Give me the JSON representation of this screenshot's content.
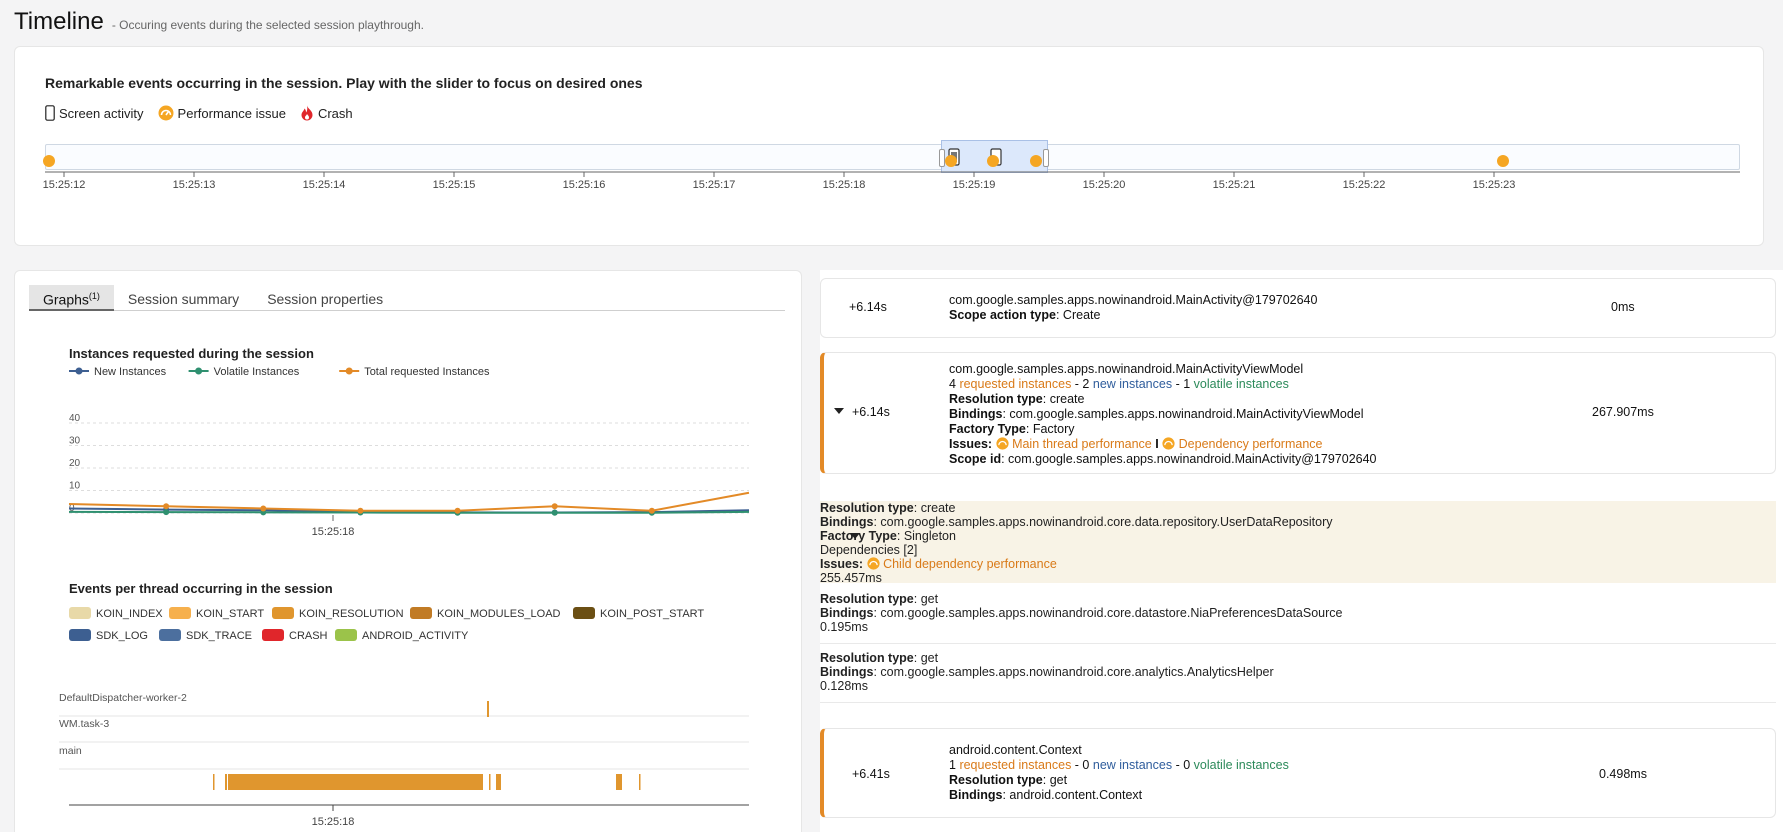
{
  "header": {
    "title": "Timeline",
    "subtitle": "- Occuring events during the selected session playthrough."
  },
  "timeline": {
    "headline": "Remarkable events occurring in the session. Play with the slider to focus on desired ones",
    "legend": [
      {
        "label": "Screen activity",
        "icon": "phone-icon"
      },
      {
        "label": "Performance issue",
        "icon": "gauge-icon"
      },
      {
        "label": "Crash",
        "icon": "flame-icon"
      }
    ],
    "ticks": [
      "15:25:12",
      "15:25:13",
      "15:25:14",
      "15:25:15",
      "15:25:16",
      "15:25:17",
      "15:25:18",
      "15:25:19",
      "15:25:20",
      "15:25:21",
      "15:25:22",
      "15:25:23"
    ],
    "colors": {
      "accent": "#f5a623",
      "selection": "#dce8fb"
    }
  },
  "tabs": {
    "graphs": "Graphs",
    "graphs_badge": "(1)",
    "summary": "Session summary",
    "properties": "Session properties"
  },
  "chart_data": [
    {
      "type": "line",
      "title": "Instances requested during the session",
      "x_tick": "15:25:18",
      "yticks": [
        "40",
        "30",
        "20",
        "10",
        "0"
      ],
      "ylim": [
        0,
        40
      ],
      "series": [
        {
          "name": "New Instances",
          "color": "#3d5f91",
          "values": [
            2,
            1.5,
            1.2,
            0.5,
            0.3,
            0.2,
            0.4,
            1.2
          ]
        },
        {
          "name": "Volatile Instances",
          "color": "#2f9070",
          "values": [
            0.5,
            0.4,
            0.3,
            0.2,
            0.1,
            0.1,
            0.1,
            0.5
          ]
        },
        {
          "name": "Total requested Instances",
          "color": "#e38a27",
          "values": [
            4,
            3,
            2,
            1,
            1,
            3,
            1,
            9
          ]
        }
      ]
    },
    {
      "type": "bar",
      "title": "Events per thread occurring in the session",
      "x_tick": "15:25:18",
      "threads": [
        "DefaultDispatcher-worker-2",
        "WM.task-3",
        "main"
      ],
      "legend": [
        {
          "name": "KOIN_INDEX",
          "color": "#e8d9a8"
        },
        {
          "name": "KOIN_START",
          "color": "#f6b04d"
        },
        {
          "name": "KOIN_RESOLUTION",
          "color": "#e0962e"
        },
        {
          "name": "KOIN_MODULES_LOAD",
          "color": "#c17b25"
        },
        {
          "name": "KOIN_POST_START",
          "color": "#6b4f14"
        },
        {
          "name": "SDK_LOG",
          "color": "#3d5f91"
        },
        {
          "name": "SDK_TRACE",
          "color": "#4c6f9e"
        },
        {
          "name": "CRASH",
          "color": "#e0262b"
        },
        {
          "name": "ANDROID_ACTIVITY",
          "color": "#9bc34a"
        }
      ]
    }
  ],
  "events": [
    {
      "time": "+6.14s",
      "title": "com.google.samples.apps.nowinandroid.MainActivity@179702640",
      "scope_label": "Scope action type",
      "scope_value": ": Create",
      "duration": "0ms"
    },
    {
      "time": "+6.14s",
      "title": "com.google.samples.apps.nowinandroid.MainActivityViewModel",
      "req_count": "4",
      "req_label": "requested instances",
      "new_sep": " - 2",
      "new_label": "new instances",
      "vol_sep": " - 1",
      "vol_label": "volatile instances",
      "res_label": "Resolution type",
      "res_value": ": create",
      "bind_label": "Bindings",
      "bind_value": ": com.google.samples.apps.nowinandroid.MainActivityViewModel",
      "fact_label": "Factory Type",
      "fact_value": ": Factory",
      "issues_label": "Issues",
      "issue1": "Main thread performance",
      "issue_sep": "I",
      "issue2": "Dependency performance",
      "scope_label": "Scope id",
      "scope_value": ": com.google.samples.apps.nowinandroid.MainActivity@179702640",
      "duration": "267.907ms"
    },
    {
      "time": "+6.41s",
      "title": "android.content.Context",
      "req_count": "1",
      "req_label": "requested instances",
      "new_sep": " - 0",
      "new_label": "new instances",
      "vol_sep": " - 0",
      "vol_label": "volatile instances",
      "res_label": "Resolution type",
      "res_value": ": get",
      "bind_label": "Bindings",
      "bind_value": ": android.content.Context",
      "duration": "0.498ms"
    }
  ],
  "dependencies": [
    {
      "res_label": "Resolution type",
      "res_value": ": create",
      "bind_label": "Bindings",
      "bind_value": ": com.google.samples.apps.nowinandroid.core.data.repository.UserDataRepository",
      "fact_label": "Factory Type",
      "fact_value": ": Singleton",
      "deps": "Dependencies [2]",
      "issues_label": "Issues",
      "issue1": "Child dependency performance",
      "duration": "255.457ms"
    },
    {
      "res_label": "Resolution type",
      "res_value": ": get",
      "bind_label": "Bindings",
      "bind_value": ": com.google.samples.apps.nowinandroid.core.datastore.NiaPreferencesDataSource",
      "duration": "0.195ms"
    },
    {
      "res_label": "Resolution type",
      "res_value": ": get",
      "bind_label": "Bindings",
      "bind_value": ": com.google.samples.apps.nowinandroid.core.analytics.AnalyticsHelper",
      "duration": "0.128ms"
    }
  ]
}
